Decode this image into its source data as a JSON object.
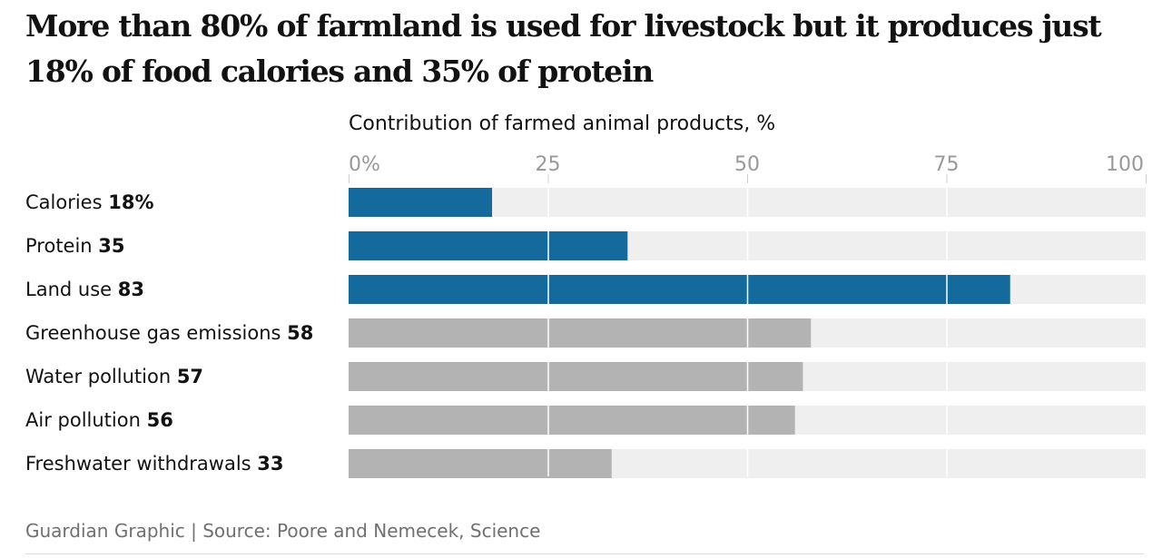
{
  "headline": "More than 80% of farmland is used for livestock but it produces just 18% of food calories and 35% of protein",
  "footer": {
    "source": "Guardian Graphic | Source: Poore and Nemecek, Science"
  },
  "chart_data": {
    "type": "bar",
    "orientation": "horizontal",
    "title": "Contribution of farmed animal products, %",
    "xlim": [
      0,
      100
    ],
    "xticks": [
      0,
      25,
      50,
      75,
      100
    ],
    "xtick_labels": [
      "0%",
      "25",
      "50",
      "75",
      "100"
    ],
    "grid": true,
    "colors": {
      "highlight": "#146a9c",
      "muted": "#b3b3b4",
      "track": "#efefef",
      "grid": "#ffffff"
    },
    "categories": [
      "Calories",
      "Protein",
      "Land use",
      "Greenhouse gas emissions",
      "Water pollution",
      "Air pollution",
      "Freshwater withdrawals"
    ],
    "values": [
      18,
      35,
      83,
      58,
      57,
      56,
      33
    ],
    "value_labels": [
      "18%",
      "35",
      "83",
      "58",
      "57",
      "56",
      "33"
    ],
    "highlight": [
      true,
      true,
      true,
      false,
      false,
      false,
      false
    ]
  }
}
